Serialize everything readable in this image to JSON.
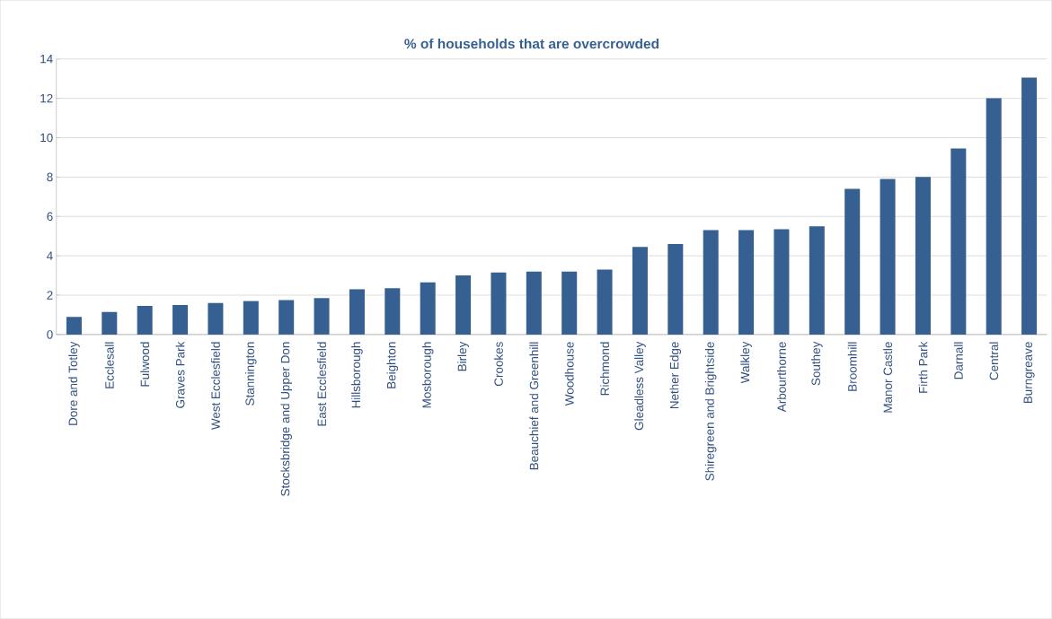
{
  "chart_data": {
    "type": "bar",
    "title": "% of households that are overcrowded",
    "categories": [
      "Dore and Totley",
      "Ecclesall",
      "Fulwood",
      "Graves Park",
      "West Ecclesfield",
      "Stannington",
      "Stocksbridge and Upper Don",
      "East Ecclesfield",
      "Hillsborough",
      "Beighton",
      "Mosborough",
      "Birley",
      "Crookes",
      "Beauchief and Greenhill",
      "Woodhouse",
      "Richmond",
      "Gleadless Valley",
      "Nether Edge",
      "Shiregreen and Brightside",
      "Walkley",
      "Arbourthorne",
      "Southey",
      "Broomhill",
      "Manor Castle",
      "Firth Park",
      "Darnall",
      "Central",
      "Burngreave"
    ],
    "values": [
      0.9,
      1.15,
      1.45,
      1.5,
      1.6,
      1.7,
      1.75,
      1.85,
      2.3,
      2.35,
      2.65,
      3.0,
      3.15,
      3.2,
      3.2,
      3.3,
      4.45,
      4.6,
      5.3,
      5.3,
      5.35,
      5.5,
      7.4,
      7.9,
      8.0,
      9.45,
      12.0,
      13.05
    ],
    "color": "#366092",
    "ylim": [
      0,
      14
    ],
    "yticks": [
      0,
      2,
      4,
      6,
      8,
      10,
      12,
      14
    ],
    "grid": "y"
  }
}
